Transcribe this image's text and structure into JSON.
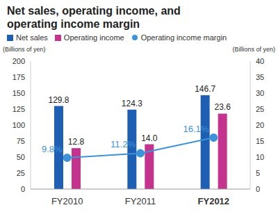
{
  "chart_data": {
    "type": "bar",
    "title": "Net sales, operating income, and operating income margin",
    "categories": [
      "FY2010",
      "FY2011",
      "FY2012"
    ],
    "series": [
      {
        "name": "Net sales",
        "type": "bar",
        "color": "#1f5fb3",
        "values": [
          129.8,
          124.3,
          146.7
        ]
      },
      {
        "name": "Operating income",
        "type": "bar",
        "axis": "y2",
        "color": "#c4348f",
        "values": [
          12.8,
          14.0,
          23.6
        ],
        "value_labels": [
          "12.8",
          "14.0",
          "23.6"
        ]
      },
      {
        "name": "Operating income margin",
        "type": "line",
        "axis": "y2",
        "color": "#3d92d8",
        "marker": "circle",
        "values": [
          9.8,
          11.2,
          16.1
        ],
        "value_labels": [
          "9.8%",
          "11.2%",
          "16.1%"
        ]
      }
    ],
    "y_label": "(Billions of yen)",
    "y2_label": "(Billions of yen)",
    "ylim": [
      0,
      200
    ],
    "yticks": [
      0,
      25,
      50,
      75,
      100,
      125,
      150,
      175,
      200
    ],
    "y2lim": [
      0,
      40
    ],
    "y2ticks": [
      0,
      5,
      10,
      15,
      20,
      25,
      30,
      35,
      40
    ],
    "data_labels": true,
    "grid": false
  }
}
